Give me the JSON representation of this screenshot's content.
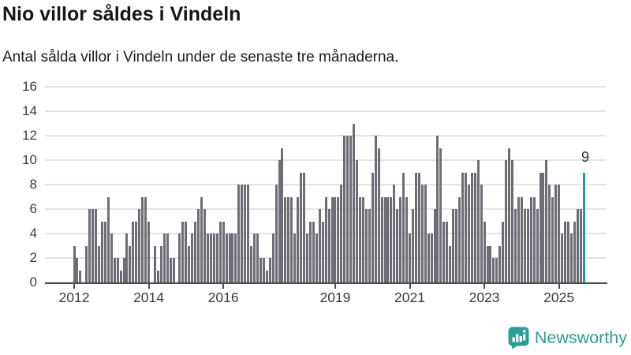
{
  "header": {
    "title": "Nio villor såldes i Vindeln",
    "subtitle": "Antal sålda villor i Vindeln under de senaste tre månaderna."
  },
  "chart_data": {
    "type": "bar",
    "title": "Nio villor såldes i Vindeln",
    "subtitle": "Antal sålda villor i Vindeln under de senaste tre månaderna.",
    "x_unit": "month",
    "start_month": "2012-01",
    "end_month": "2025-09",
    "values": [
      3,
      2,
      1,
      0,
      3,
      6,
      6,
      6,
      3,
      5,
      5,
      7,
      4,
      2,
      2,
      1,
      2,
      4,
      3,
      5,
      5,
      6,
      7,
      7,
      5,
      0,
      3,
      1,
      3,
      4,
      4,
      2,
      2,
      0,
      4,
      5,
      5,
      3,
      4,
      5,
      6,
      7,
      6,
      4,
      4,
      4,
      4,
      5,
      5,
      4,
      4,
      4,
      4,
      8,
      8,
      8,
      8,
      3,
      4,
      4,
      2,
      2,
      1,
      2,
      4,
      8,
      10,
      11,
      7,
      7,
      7,
      4,
      7,
      9,
      9,
      4,
      5,
      5,
      4,
      6,
      5,
      7,
      6,
      7,
      7,
      7,
      8,
      12,
      12,
      12,
      13,
      10,
      7,
      7,
      6,
      6,
      9,
      12,
      11,
      7,
      7,
      7,
      7,
      8,
      6,
      7,
      9,
      7,
      4,
      6,
      9,
      9,
      8,
      8,
      4,
      4,
      6,
      12,
      11,
      5,
      5,
      3,
      6,
      6,
      7,
      9,
      9,
      8,
      9,
      9,
      10,
      8,
      5,
      3,
      3,
      2,
      2,
      3,
      5,
      10,
      11,
      10,
      6,
      7,
      7,
      6,
      6,
      7,
      7,
      6,
      9,
      9,
      10,
      8,
      7,
      8,
      8,
      4,
      5,
      5,
      4,
      5,
      6,
      6,
      9
    ],
    "highlight_index": 164,
    "highlight_value": 9,
    "annotation": "9",
    "x_tick_labels": [
      "2012",
      "2014",
      "2016",
      "2019",
      "2021",
      "2023",
      "2025"
    ],
    "x_tick_months": [
      0,
      24,
      48,
      84,
      108,
      132,
      156
    ],
    "y_ticks": [
      0,
      2,
      4,
      6,
      8,
      10,
      12,
      14,
      16
    ],
    "y_tick_labels": [
      "0",
      "2",
      "4",
      "6",
      "8",
      "10",
      "12",
      "14",
      "16"
    ],
    "ylim": [
      0,
      16
    ],
    "grid": "horizontal",
    "legend": "none",
    "colors": {
      "bar": "#6d6d76",
      "highlight": "#14a2a2",
      "gridline": "#e4e4e4",
      "axis": "#4d4d4d",
      "text": "#1c1c1c"
    }
  },
  "footer": {
    "brand": "Newsworthy",
    "brand_color": "#2d9d97",
    "icons": {
      "logo": "speech-bubble-bar-chart-exclamation-icon"
    }
  }
}
